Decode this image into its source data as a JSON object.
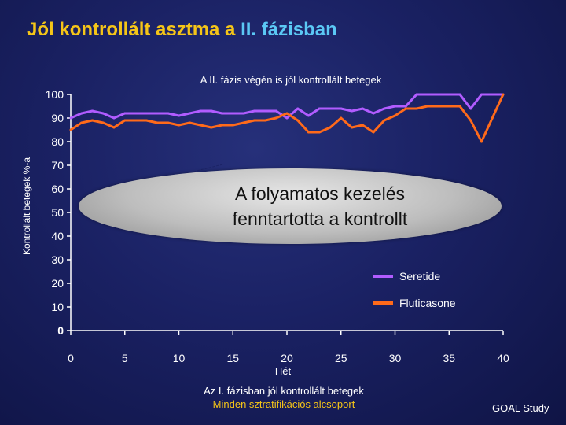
{
  "slide": {
    "title_main": "Jól kontrollált asztma a ",
    "title_highlight": "II. fázisban",
    "subtitle": "A II. fázis végén is jól kontrollált betegek",
    "callout": "A folyamatos kezelés fenntartotta a kontrollt",
    "note_line1": "Az I. fázisban jól kontrollált betegek",
    "note_line2": "Minden sztratifikációs alcsoport",
    "source": "GOAL Study"
  },
  "colors": {
    "title": "#f5c518",
    "title_highlight": "#5bc8f5",
    "seretide": "#b15cff",
    "fluticasone": "#ff6a1a",
    "axis": "#ffffff"
  },
  "chart_data": {
    "type": "line",
    "xlabel": "Hét",
    "ylabel": "Kontrollált betegek %-a",
    "xlim": [
      0,
      40
    ],
    "ylim": [
      0,
      100
    ],
    "x_ticks": [
      "0",
      "5",
      "10",
      "15",
      "20",
      "25",
      "30",
      "35",
      "40"
    ],
    "y_ticks": [
      "0",
      "10",
      "20",
      "30",
      "40",
      "50",
      "60",
      "70",
      "80",
      "90",
      "100"
    ],
    "grid": false,
    "legend_position": "lower-right",
    "x": [
      0,
      1,
      2,
      3,
      4,
      5,
      6,
      7,
      8,
      9,
      10,
      11,
      12,
      13,
      14,
      15,
      16,
      17,
      18,
      19,
      20,
      21,
      22,
      23,
      24,
      25,
      26,
      27,
      28,
      29,
      30,
      31,
      32,
      33,
      34,
      35,
      36,
      37,
      38,
      39,
      40
    ],
    "series": [
      {
        "name": "Seretide",
        "values": [
          90,
          92,
          93,
          92,
          90,
          92,
          92,
          92,
          92,
          92,
          91,
          92,
          93,
          93,
          92,
          92,
          92,
          93,
          93,
          93,
          90,
          94,
          91,
          94,
          94,
          94,
          93,
          94,
          92,
          94,
          95,
          95,
          100,
          100,
          100,
          100,
          100,
          94,
          100,
          100,
          100
        ]
      },
      {
        "name": "Fluticasone",
        "values": [
          85,
          88,
          89,
          88,
          86,
          89,
          89,
          89,
          88,
          88,
          87,
          88,
          87,
          86,
          87,
          87,
          88,
          89,
          89,
          90,
          92,
          89,
          84,
          84,
          86,
          90,
          86,
          87,
          84,
          89,
          91,
          94,
          94,
          95,
          95,
          95,
          95,
          89,
          80,
          90,
          100
        ]
      }
    ]
  }
}
